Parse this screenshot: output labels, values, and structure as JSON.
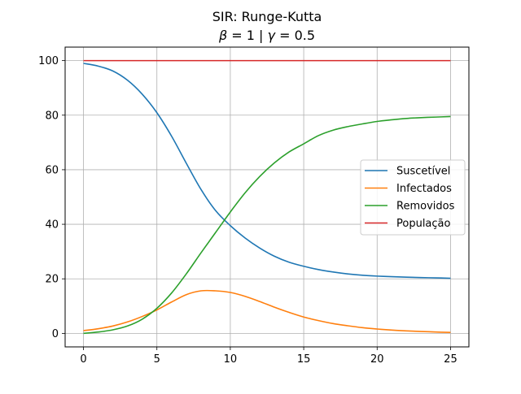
{
  "chart_data": {
    "type": "line",
    "title": "SIR: Runge-Kutta",
    "subtitle": {
      "beta_symbol": "β",
      "beta_value": " = 1 | ",
      "gamma_symbol": "γ",
      "gamma_value": " = 0.5"
    },
    "xlabel": "",
    "ylabel": "",
    "xlim": [
      -1.25,
      26.25
    ],
    "ylim": [
      -4.95,
      104.95
    ],
    "x_ticks": [
      0,
      5,
      10,
      15,
      20,
      25
    ],
    "y_ticks": [
      0,
      20,
      40,
      60,
      80,
      100
    ],
    "grid": true,
    "legend_position": "center-right",
    "x": [
      0,
      1,
      2,
      3,
      4,
      5,
      6,
      7,
      8,
      9,
      10,
      11,
      12,
      13,
      14,
      15,
      16,
      17,
      18,
      19,
      20,
      21,
      22,
      23,
      24,
      25
    ],
    "series": [
      {
        "name": "Suscetível",
        "color": "#1f77b4",
        "values": [
          99.0,
          98.0,
          96.2,
          92.8,
          87.7,
          80.9,
          72.3,
          62.4,
          52.8,
          45.0,
          39.5,
          35.0,
          31.3,
          28.3,
          26.1,
          24.6,
          23.4,
          22.5,
          21.8,
          21.3,
          21.0,
          20.8,
          20.6,
          20.45,
          20.35,
          20.2
        ]
      },
      {
        "name": "Infectados",
        "color": "#ff7f0e",
        "values": [
          1.0,
          1.7,
          2.7,
          4.2,
          6.2,
          8.6,
          11.5,
          14.2,
          15.6,
          15.6,
          15.0,
          13.6,
          11.7,
          9.6,
          7.7,
          6.0,
          4.7,
          3.6,
          2.8,
          2.1,
          1.6,
          1.2,
          0.9,
          0.7,
          0.5,
          0.35
        ]
      },
      {
        "name": "Removidos",
        "color": "#2ca02c",
        "values": [
          0.0,
          0.5,
          1.3,
          2.7,
          5.2,
          9.2,
          14.8,
          21.8,
          29.5,
          37.0,
          44.5,
          51.5,
          57.5,
          62.5,
          66.5,
          69.5,
          72.5,
          74.5,
          75.8,
          76.8,
          77.7,
          78.3,
          78.8,
          79.1,
          79.3,
          79.5
        ]
      },
      {
        "name": "População",
        "color": "#d62728",
        "values": [
          100,
          100,
          100,
          100,
          100,
          100,
          100,
          100,
          100,
          100,
          100,
          100,
          100,
          100,
          100,
          100,
          100,
          100,
          100,
          100,
          100,
          100,
          100,
          100,
          100,
          100
        ]
      }
    ]
  }
}
